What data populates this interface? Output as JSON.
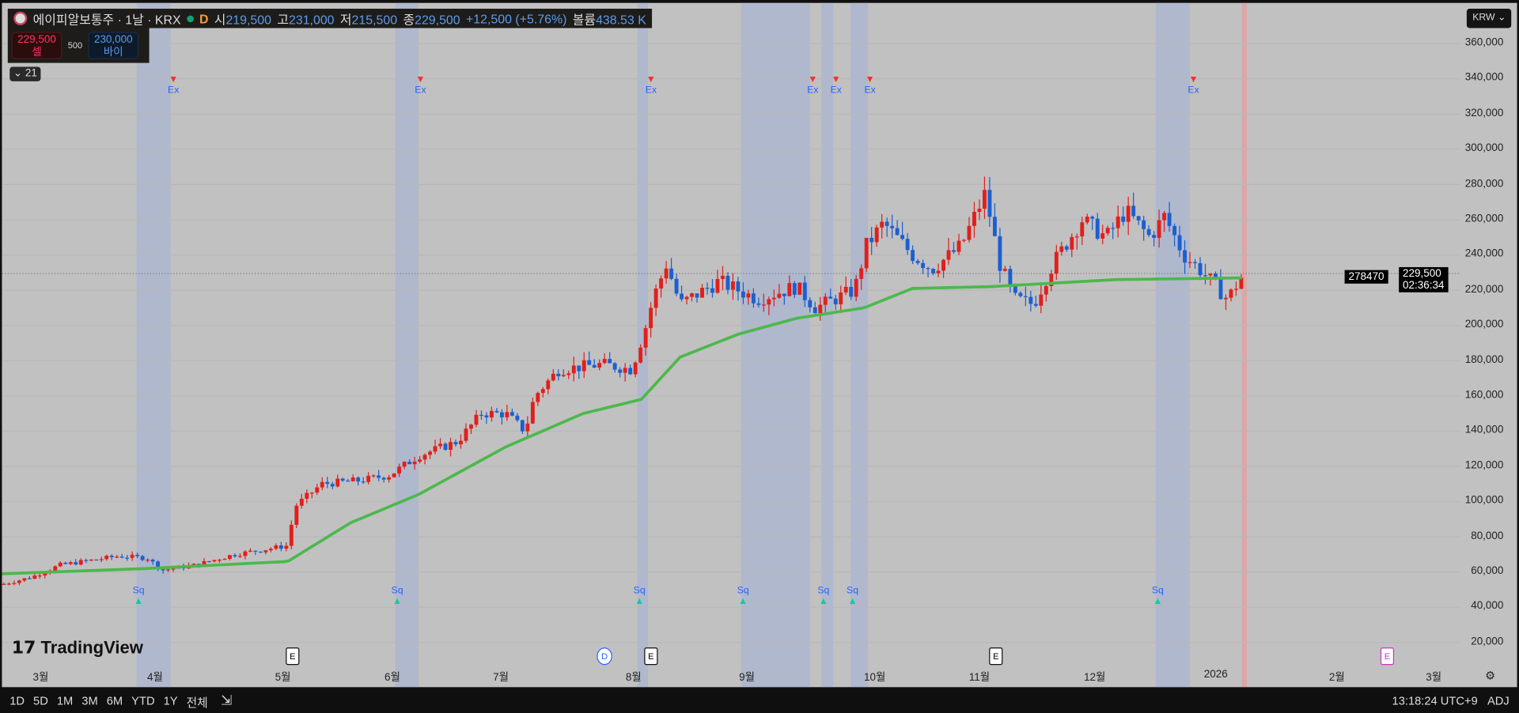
{
  "legend": {
    "symbol": "에이피알보통주 · 1날 · KRX",
    "market_state": "D",
    "open_label": "시",
    "open": "219,500",
    "high_label": "고",
    "high": "231,000",
    "low_label": "저",
    "low": "215,500",
    "close_label": "종",
    "close": "229,500",
    "change": "+12,500 (+5.76%)",
    "volume_label": "볼륨",
    "volume": "438.53 K"
  },
  "trade": {
    "sell_price": "229,500",
    "sell_label": "셀",
    "spread": "500",
    "buy_price": "230,000",
    "buy_label": "바이"
  },
  "indicator_toggle": "21",
  "currency": "KRW",
  "price_labels": {
    "crosshair": "278470",
    "last_price": "229,500",
    "countdown": "02:36:34"
  },
  "logo": "TradingView",
  "marker_labels": {
    "ex": "Ex",
    "sq": "Sq"
  },
  "events": [
    {
      "label": "E",
      "month": "5월"
    },
    {
      "label": "D",
      "month": "7월"
    },
    {
      "label": "E",
      "month": "8월"
    },
    {
      "label": "E",
      "month": "11월"
    },
    {
      "label": "E",
      "month": "2월"
    }
  ],
  "bottom": {
    "ranges": [
      "1D",
      "5D",
      "1M",
      "3M",
      "6M",
      "YTD",
      "1Y",
      "전체"
    ],
    "time": "13:18:24 UTC+9",
    "adj": "ADJ"
  },
  "colors": {
    "up": "#e0201c",
    "down": "#1c5fd0",
    "ma": "#4cb84c",
    "shade": "#a8b4d0",
    "background": "#c1c1c1"
  },
  "chart_data": {
    "type": "candlestick",
    "y_ticks": [
      "360,000",
      "340,000",
      "320,000",
      "300,000",
      "280,000",
      "260,000",
      "240,000",
      "220,000",
      "200,000",
      "180,000",
      "160,000",
      "140,000",
      "120,000",
      "100,000",
      "80,000",
      "60,000",
      "40,000",
      "20,000"
    ],
    "ylim": [
      10000,
      370000
    ],
    "x_ticks": [
      "3월",
      "4월",
      "5월",
      "6월",
      "7월",
      "8월",
      "9월",
      "10월",
      "11월",
      "12월",
      "2026",
      "2월",
      "3월"
    ],
    "close_path": [
      [
        0,
        53000
      ],
      [
        30,
        57000
      ],
      [
        60,
        64000
      ],
      [
        120,
        69000
      ],
      [
        150,
        68000
      ],
      [
        165,
        61000
      ],
      [
        200,
        64000
      ],
      [
        240,
        70000
      ],
      [
        295,
        75000
      ],
      [
        302,
        97000
      ],
      [
        330,
        110000
      ],
      [
        370,
        112000
      ],
      [
        400,
        115000
      ],
      [
        430,
        126000
      ],
      [
        470,
        134000
      ],
      [
        495,
        150000
      ],
      [
        520,
        150000
      ],
      [
        540,
        140000
      ],
      [
        550,
        160000
      ],
      [
        575,
        175000
      ],
      [
        620,
        178000
      ],
      [
        650,
        175000
      ],
      [
        665,
        200000
      ],
      [
        672,
        215000
      ],
      [
        686,
        235000
      ],
      [
        700,
        212000
      ],
      [
        740,
        225000
      ],
      [
        780,
        215000
      ],
      [
        820,
        222000
      ],
      [
        840,
        210000
      ],
      [
        880,
        220000
      ],
      [
        892,
        245000
      ],
      [
        910,
        258000
      ],
      [
        940,
        240000
      ],
      [
        960,
        232000
      ],
      [
        990,
        245000
      ],
      [
        1015,
        275000
      ],
      [
        1030,
        235000
      ],
      [
        1045,
        215000
      ],
      [
        1065,
        212000
      ],
      [
        1085,
        235000
      ],
      [
        1115,
        260000
      ],
      [
        1140,
        250000
      ],
      [
        1160,
        265000
      ],
      [
        1185,
        250000
      ],
      [
        1200,
        262000
      ],
      [
        1220,
        240000
      ],
      [
        1240,
        230000
      ],
      [
        1265,
        215000
      ],
      [
        1282,
        229500
      ]
    ],
    "ma_path": [
      [
        0,
        59000
      ],
      [
        150,
        62000
      ],
      [
        295,
        66000
      ],
      [
        360,
        88000
      ],
      [
        430,
        104000
      ],
      [
        520,
        131000
      ],
      [
        600,
        150000
      ],
      [
        660,
        158000
      ],
      [
        700,
        182000
      ],
      [
        760,
        195000
      ],
      [
        820,
        204000
      ],
      [
        890,
        210000
      ],
      [
        940,
        221000
      ],
      [
        1020,
        222000
      ],
      [
        1150,
        226000
      ],
      [
        1282,
        227000
      ]
    ],
    "last_price": 229500
  }
}
